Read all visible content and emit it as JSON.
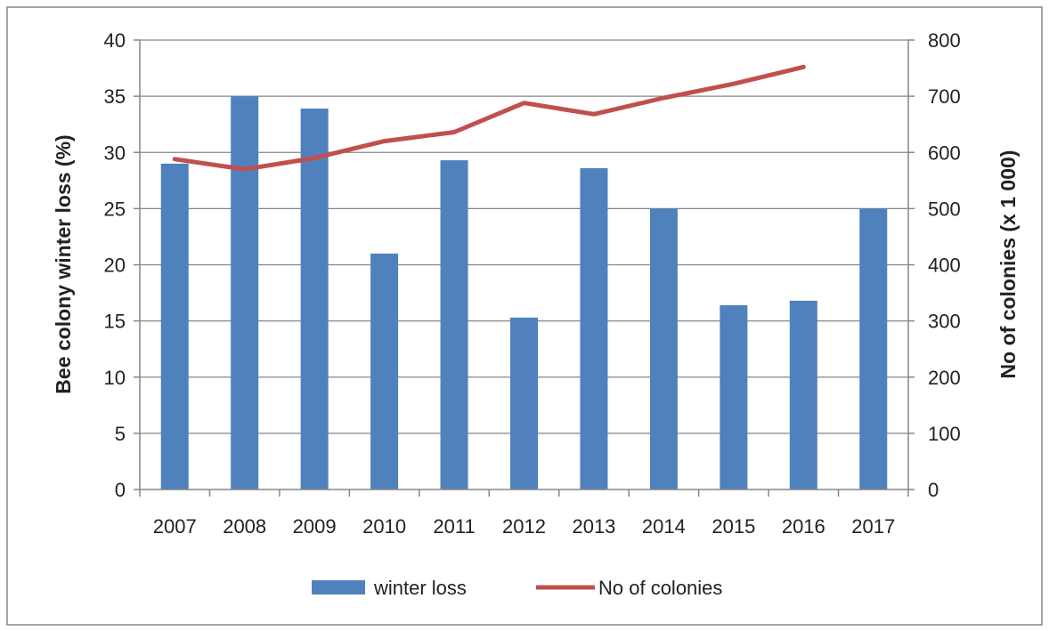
{
  "chart_data": {
    "type": "bar",
    "categories": [
      "2007",
      "2008",
      "2009",
      "2010",
      "2011",
      "2012",
      "2013",
      "2014",
      "2015",
      "2016",
      "2017"
    ],
    "series": [
      {
        "name": "winter loss",
        "type": "bar",
        "axis": "left",
        "color": "#4F81BD",
        "values": [
          29,
          35,
          33.9,
          21,
          29.3,
          15.3,
          28.6,
          25,
          16.4,
          16.8,
          25
        ]
      },
      {
        "name": "No of colonies",
        "type": "line",
        "axis": "right",
        "color": "#C0504D",
        "values": [
          588,
          570,
          590,
          620,
          636,
          688,
          668,
          697,
          722,
          752,
          null
        ]
      }
    ],
    "ylabel": "Bee colony winter loss (%)",
    "ylim": [
      0,
      40
    ],
    "yticks": [
      0,
      5,
      10,
      15,
      20,
      25,
      30,
      35,
      40
    ],
    "y2label": "No of  colonies (x 1 000)",
    "y2lim": [
      0,
      800
    ],
    "y2ticks": [
      0,
      100,
      200,
      300,
      400,
      500,
      600,
      700,
      800
    ],
    "grid": true,
    "legend_position": "bottom"
  }
}
